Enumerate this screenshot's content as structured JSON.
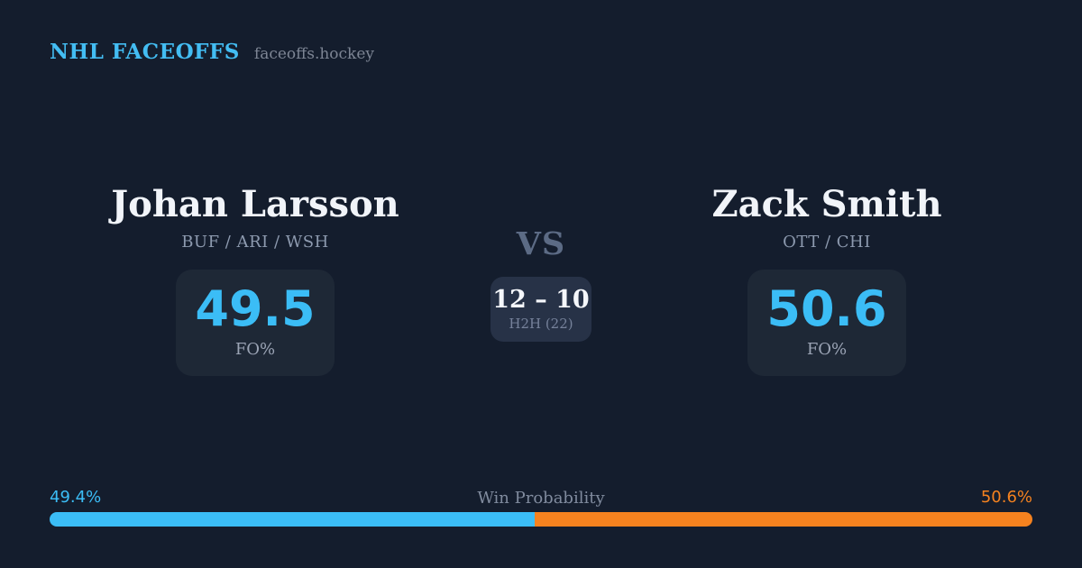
{
  "brand": {
    "title": "NHL FACEOFFS",
    "site": "faceoffs.hockey"
  },
  "matchup": {
    "vs_label": "VS",
    "h2h": {
      "score": "12 – 10",
      "label": "H2H (22)"
    },
    "player1": {
      "name": "Johan Larsson",
      "teams": "BUF / ARI / WSH",
      "fo_value": "49.5",
      "fo_label": "FO%"
    },
    "player2": {
      "name": "Zack Smith",
      "teams": "OTT / CHI",
      "fo_value": "50.6",
      "fo_label": "FO%"
    }
  },
  "win_probability": {
    "label": "Win Probability",
    "left": {
      "text": "49.4%",
      "value": 49.4
    },
    "right": {
      "text": "50.6%",
      "value": 50.6
    }
  },
  "colors": {
    "background": "#141d2d",
    "accent_blue": "#3bbdf6",
    "accent_orange": "#f5821f",
    "stat_box": "#1e2836",
    "h2h_box": "#273247",
    "text_primary": "#f1f4f9",
    "text_muted": "#8d9aaf",
    "vs_text": "#5c6b85"
  }
}
